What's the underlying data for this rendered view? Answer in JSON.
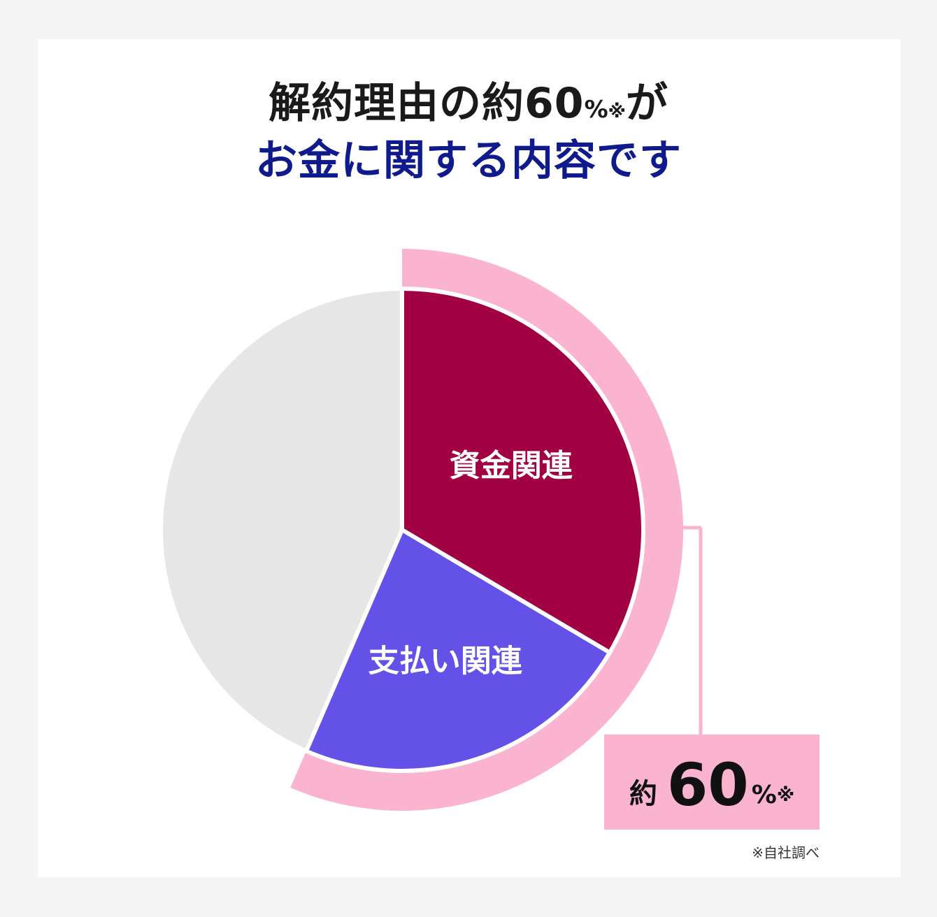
{
  "title": {
    "line1_main": "解約理由の約60",
    "line1_unit": "%",
    "line1_mark": "※",
    "line1_end": "が",
    "line2": "お金に関する内容です"
  },
  "colors": {
    "shikin": "#a10043",
    "shiharai": "#6351e8",
    "other": "#e6e6e6",
    "highlight": "#fbb4cf",
    "title_blue": "#0f1a8c"
  },
  "chart_data": {
    "type": "pie",
    "slices": [
      {
        "label": "資金関連",
        "value": 0.335,
        "color": "#a10043"
      },
      {
        "label": "支払い関連",
        "value": 0.23,
        "color": "#6351e8"
      },
      {
        "label": "",
        "value": 0.435,
        "color": "#e6e6e6"
      }
    ],
    "highlight_total_label": "約60%※"
  },
  "callout": {
    "prefix": "約",
    "value": "60",
    "unit": "%",
    "mark": "※"
  },
  "footnote": "※自社調べ"
}
